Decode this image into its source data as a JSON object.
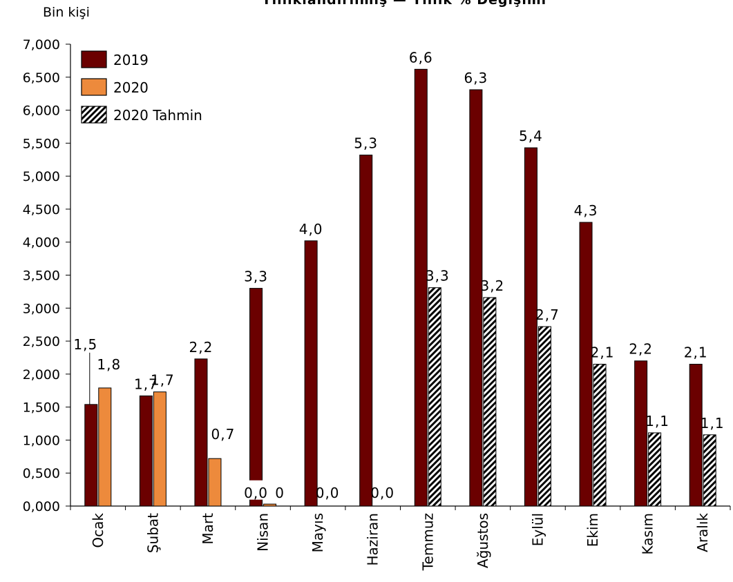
{
  "chart_data": {
    "type": "bar",
    "title": "Yıllıklandırılmış — Yıllık % Değişimi",
    "ylabel": "Bin kişi",
    "xlabel": "",
    "ylim": [
      0,
      7000
    ],
    "ytick_labels": [
      "0,000",
      "0,500",
      "1,000",
      "1,500",
      "2,000",
      "2,500",
      "3,000",
      "3,500",
      "4,000",
      "4,500",
      "5,000",
      "5,500",
      "6,000",
      "6,500",
      "7,000"
    ],
    "categories": [
      "Ocak",
      "Şubat",
      "Mart",
      "Nisan",
      "Mayıs",
      "Haziran",
      "Temmuz",
      "Ağustos",
      "Eylül",
      "Ekim",
      "Kasım",
      "Aralık"
    ],
    "legend_position": "top-left",
    "grid": false,
    "series": [
      {
        "name": "2019",
        "color": "#6B0000",
        "pattern": "solid",
        "values": [
          1540,
          1670,
          2230,
          3300,
          4020,
          5320,
          6620,
          6310,
          5430,
          4300,
          2200,
          2150
        ],
        "labels": [
          "1,5",
          "1,7",
          "2,2",
          "3,3",
          "4,0",
          "5,3",
          "6,6",
          "6,3",
          "5,4",
          "4,3",
          "2,2",
          "2,1"
        ]
      },
      {
        "name": "2020",
        "color": "#ED8A3C",
        "pattern": "solid",
        "values": [
          1790,
          1730,
          720,
          30,
          0,
          0,
          null,
          null,
          null,
          null,
          null,
          null
        ],
        "labels": [
          "1,8",
          "1,7",
          "0,7",
          "0,0",
          "0,0",
          "0,0",
          null,
          null,
          null,
          null,
          null,
          null
        ]
      },
      {
        "name": "2020 Tahmin",
        "color": "#000000",
        "pattern": "hatch",
        "values": [
          null,
          null,
          null,
          null,
          null,
          null,
          3310,
          3160,
          2720,
          2150,
          1110,
          1080
        ],
        "labels": [
          null,
          null,
          null,
          null,
          null,
          null,
          "3,3",
          "3,2",
          "2,7",
          "2,1",
          "1,1",
          "1,1"
        ]
      }
    ],
    "extra_labels": [
      {
        "category": "Nisan",
        "text": "0,0"
      }
    ]
  }
}
